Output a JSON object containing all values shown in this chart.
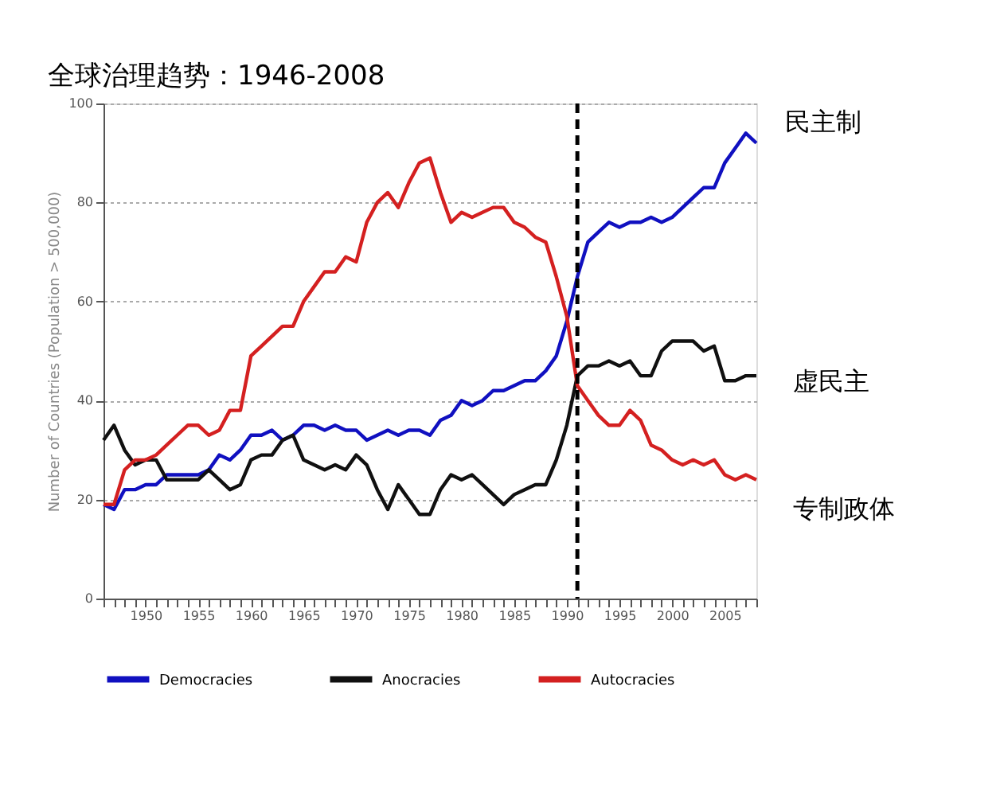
{
  "chart_data": {
    "type": "line",
    "title": "全球治理趋势：1946-2008",
    "ylabel": "Number of Countries (Population > 500,000)",
    "x": [
      1946,
      1947,
      1948,
      1949,
      1950,
      1951,
      1952,
      1953,
      1954,
      1955,
      1956,
      1957,
      1958,
      1959,
      1960,
      1961,
      1962,
      1963,
      1964,
      1965,
      1966,
      1967,
      1968,
      1969,
      1970,
      1971,
      1972,
      1973,
      1974,
      1975,
      1976,
      1977,
      1978,
      1979,
      1980,
      1981,
      1982,
      1983,
      1984,
      1985,
      1986,
      1987,
      1988,
      1989,
      1990,
      1991,
      1992,
      1993,
      1994,
      1995,
      1996,
      1997,
      1998,
      1999,
      2000,
      2001,
      2002,
      2003,
      2004,
      2005,
      2006,
      2007,
      2008
    ],
    "series": [
      {
        "name": "Democracies",
        "color": "#1010c0",
        "values": [
          19,
          18,
          22,
          22,
          23,
          23,
          25,
          25,
          25,
          25,
          26,
          29,
          28,
          30,
          33,
          33,
          34,
          32,
          33,
          35,
          35,
          34,
          35,
          34,
          34,
          32,
          33,
          34,
          33,
          34,
          34,
          33,
          36,
          37,
          40,
          39,
          40,
          42,
          42,
          43,
          44,
          44,
          46,
          49,
          56,
          65,
          72,
          74,
          76,
          75,
          76,
          76,
          77,
          76,
          77,
          79,
          81,
          83,
          83,
          88,
          91,
          94,
          92
        ]
      },
      {
        "name": "Anocracies",
        "color": "#101010",
        "values": [
          32,
          35,
          30,
          27,
          28,
          28,
          24,
          24,
          24,
          24,
          26,
          24,
          22,
          23,
          28,
          29,
          29,
          32,
          33,
          28,
          27,
          26,
          27,
          26,
          29,
          27,
          22,
          18,
          23,
          20,
          17,
          17,
          22,
          25,
          24,
          25,
          23,
          21,
          19,
          21,
          22,
          23,
          23,
          28,
          35,
          45,
          47,
          47,
          48,
          47,
          48,
          45,
          45,
          50,
          52,
          52,
          52,
          50,
          51,
          44,
          44,
          45,
          45
        ]
      },
      {
        "name": "Autocracies",
        "color": "#d42020",
        "values": [
          19,
          19,
          26,
          28,
          28,
          29,
          31,
          33,
          35,
          35,
          33,
          34,
          38,
          38,
          49,
          51,
          53,
          55,
          55,
          60,
          63,
          66,
          66,
          69,
          68,
          76,
          80,
          82,
          79,
          84,
          88,
          89,
          82,
          76,
          78,
          77,
          78,
          79,
          79,
          76,
          75,
          73,
          72,
          65,
          57,
          43,
          40,
          37,
          35,
          35,
          38,
          36,
          31,
          30,
          28,
          27,
          28,
          27,
          28,
          25,
          24,
          25,
          24
        ]
      }
    ],
    "xlim": [
      1946,
      2008
    ],
    "xticks": [
      {
        "value": 1946,
        "label": null
      },
      {
        "value": 1947,
        "label": null
      },
      {
        "value": 1948,
        "label": null
      },
      {
        "value": 1949,
        "label": null
      },
      1950,
      {
        "value": 1951,
        "label": null
      },
      {
        "value": 1952,
        "label": null
      },
      {
        "value": 1953,
        "label": null
      },
      {
        "value": 1954,
        "label": null
      },
      1955,
      {
        "value": 1956,
        "label": null
      },
      {
        "value": 1957,
        "label": null
      },
      {
        "value": 1958,
        "label": null
      },
      {
        "value": 1959,
        "label": null
      },
      1960,
      {
        "value": 1961,
        "label": null
      },
      {
        "value": 1962,
        "label": null
      },
      {
        "value": 1963,
        "label": null
      },
      {
        "value": 1964,
        "label": null
      },
      1965,
      {
        "value": 1966,
        "label": null
      },
      {
        "value": 1967,
        "label": null
      },
      {
        "value": 1968,
        "label": null
      },
      {
        "value": 1969,
        "label": null
      },
      1970,
      {
        "value": 1971,
        "label": null
      },
      {
        "value": 1972,
        "label": null
      },
      {
        "value": 1973,
        "label": null
      },
      {
        "value": 1974,
        "label": null
      },
      1975,
      {
        "value": 1976,
        "label": null
      },
      {
        "value": 1977,
        "label": null
      },
      {
        "value": 1978,
        "label": null
      },
      {
        "value": 1979,
        "label": null
      },
      1980,
      {
        "value": 1981,
        "label": null
      },
      {
        "value": 1982,
        "label": null
      },
      {
        "value": 1983,
        "label": null
      },
      {
        "value": 1984,
        "label": null
      },
      1985,
      {
        "value": 1986,
        "label": null
      },
      {
        "value": 1987,
        "label": null
      },
      {
        "value": 1988,
        "label": null
      },
      {
        "value": 1989,
        "label": null
      },
      1990,
      {
        "value": 1991,
        "label": null
      },
      {
        "value": 1992,
        "label": null
      },
      {
        "value": 1993,
        "label": null
      },
      {
        "value": 1994,
        "label": null
      },
      1995,
      {
        "value": 1996,
        "label": null
      },
      {
        "value": 1997,
        "label": null
      },
      {
        "value": 1998,
        "label": null
      },
      {
        "value": 1999,
        "label": null
      },
      2000,
      {
        "value": 2001,
        "label": null
      },
      {
        "value": 2002,
        "label": null
      },
      {
        "value": 2003,
        "label": null
      },
      {
        "value": 2004,
        "label": null
      },
      2005,
      {
        "value": 2006,
        "label": null
      },
      {
        "value": 2007,
        "label": null
      },
      {
        "value": 2008,
        "label": null
      }
    ],
    "ylim": [
      0,
      100
    ],
    "yticks": [
      0,
      20,
      40,
      60,
      80,
      100
    ],
    "ref_lines": [
      {
        "axis": "x",
        "value": 1991,
        "color": "#000000",
        "line_style": "dashed"
      }
    ],
    "annotations": [
      "民主制",
      "虚民主",
      "专制政体"
    ],
    "grid": "y",
    "legend": "bottom",
    "marker": "none",
    "line_style": "solid"
  }
}
